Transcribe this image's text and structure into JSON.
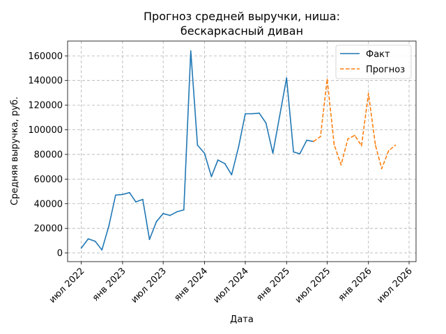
{
  "chart_data": {
    "type": "line",
    "title": [
      "Прогноз средней выручки, ниша:",
      "бескаркасный диван"
    ],
    "xlabel": "Дата",
    "ylabel": "Средняя выручка, руб.",
    "x_range": [
      "2022-05-01",
      "2026-08-01"
    ],
    "ylim": [
      -7000,
      172000
    ],
    "y_ticks": [
      0,
      20000,
      40000,
      60000,
      80000,
      100000,
      120000,
      140000,
      160000
    ],
    "x_ticks": [
      {
        "date": "2022-07-01",
        "label": "июл 2022"
      },
      {
        "date": "2023-01-01",
        "label": "янв 2023"
      },
      {
        "date": "2023-07-01",
        "label": "июл 2023"
      },
      {
        "date": "2024-01-01",
        "label": "янв 2024"
      },
      {
        "date": "2024-07-01",
        "label": "июл 2024"
      },
      {
        "date": "2025-01-01",
        "label": "янв 2025"
      },
      {
        "date": "2025-07-01",
        "label": "июл 2025"
      },
      {
        "date": "2026-01-01",
        "label": "янв 2026"
      },
      {
        "date": "2026-07-01",
        "label": "июл 2026"
      }
    ],
    "grid": true,
    "legend_position": "top-right",
    "series": [
      {
        "name": "Факт",
        "color": "#1f77b4",
        "style": "solid",
        "points": [
          {
            "x": "2022-07-01",
            "y": 4000
          },
          {
            "x": "2022-08-01",
            "y": 11500
          },
          {
            "x": "2022-09-01",
            "y": 9500
          },
          {
            "x": "2022-10-01",
            "y": 2500
          },
          {
            "x": "2022-11-01",
            "y": 22000
          },
          {
            "x": "2022-12-01",
            "y": 47000
          },
          {
            "x": "2023-01-01",
            "y": 47500
          },
          {
            "x": "2023-02-01",
            "y": 49000
          },
          {
            "x": "2023-03-01",
            "y": 41500
          },
          {
            "x": "2023-04-01",
            "y": 43500
          },
          {
            "x": "2023-05-01",
            "y": 11000
          },
          {
            "x": "2023-06-01",
            "y": 25500
          },
          {
            "x": "2023-07-01",
            "y": 32000
          },
          {
            "x": "2023-08-01",
            "y": 30500
          },
          {
            "x": "2023-09-01",
            "y": 33500
          },
          {
            "x": "2023-10-01",
            "y": 35000
          },
          {
            "x": "2023-11-01",
            "y": 164000
          },
          {
            "x": "2023-12-01",
            "y": 87500
          },
          {
            "x": "2024-01-01",
            "y": 81000
          },
          {
            "x": "2024-02-01",
            "y": 62000
          },
          {
            "x": "2024-03-01",
            "y": 75500
          },
          {
            "x": "2024-04-01",
            "y": 72500
          },
          {
            "x": "2024-05-01",
            "y": 63500
          },
          {
            "x": "2024-06-01",
            "y": 86000
          },
          {
            "x": "2024-07-01",
            "y": 113000
          },
          {
            "x": "2024-08-01",
            "y": 113000
          },
          {
            "x": "2024-09-01",
            "y": 113500
          },
          {
            "x": "2024-10-01",
            "y": 105500
          },
          {
            "x": "2024-11-01",
            "y": 81000
          },
          {
            "x": "2024-12-01",
            "y": 111000
          },
          {
            "x": "2025-01-01",
            "y": 142000
          },
          {
            "x": "2025-02-01",
            "y": 82000
          },
          {
            "x": "2025-03-01",
            "y": 80500
          },
          {
            "x": "2025-04-01",
            "y": 91500
          },
          {
            "x": "2025-05-01",
            "y": 90500
          }
        ]
      },
      {
        "name": "Прогноз",
        "color": "#ff7f0e",
        "style": "dashed",
        "points": [
          {
            "x": "2025-05-01",
            "y": 90500
          },
          {
            "x": "2025-06-01",
            "y": 94500
          },
          {
            "x": "2025-07-01",
            "y": 141000
          },
          {
            "x": "2025-08-01",
            "y": 88000
          },
          {
            "x": "2025-09-01",
            "y": 71500
          },
          {
            "x": "2025-10-01",
            "y": 92500
          },
          {
            "x": "2025-11-01",
            "y": 95500
          },
          {
            "x": "2025-12-01",
            "y": 87000
          },
          {
            "x": "2026-01-01",
            "y": 129500
          },
          {
            "x": "2026-02-01",
            "y": 87500
          },
          {
            "x": "2026-03-01",
            "y": 68500
          },
          {
            "x": "2026-04-01",
            "y": 83000
          },
          {
            "x": "2026-05-01",
            "y": 87500
          }
        ]
      }
    ]
  }
}
